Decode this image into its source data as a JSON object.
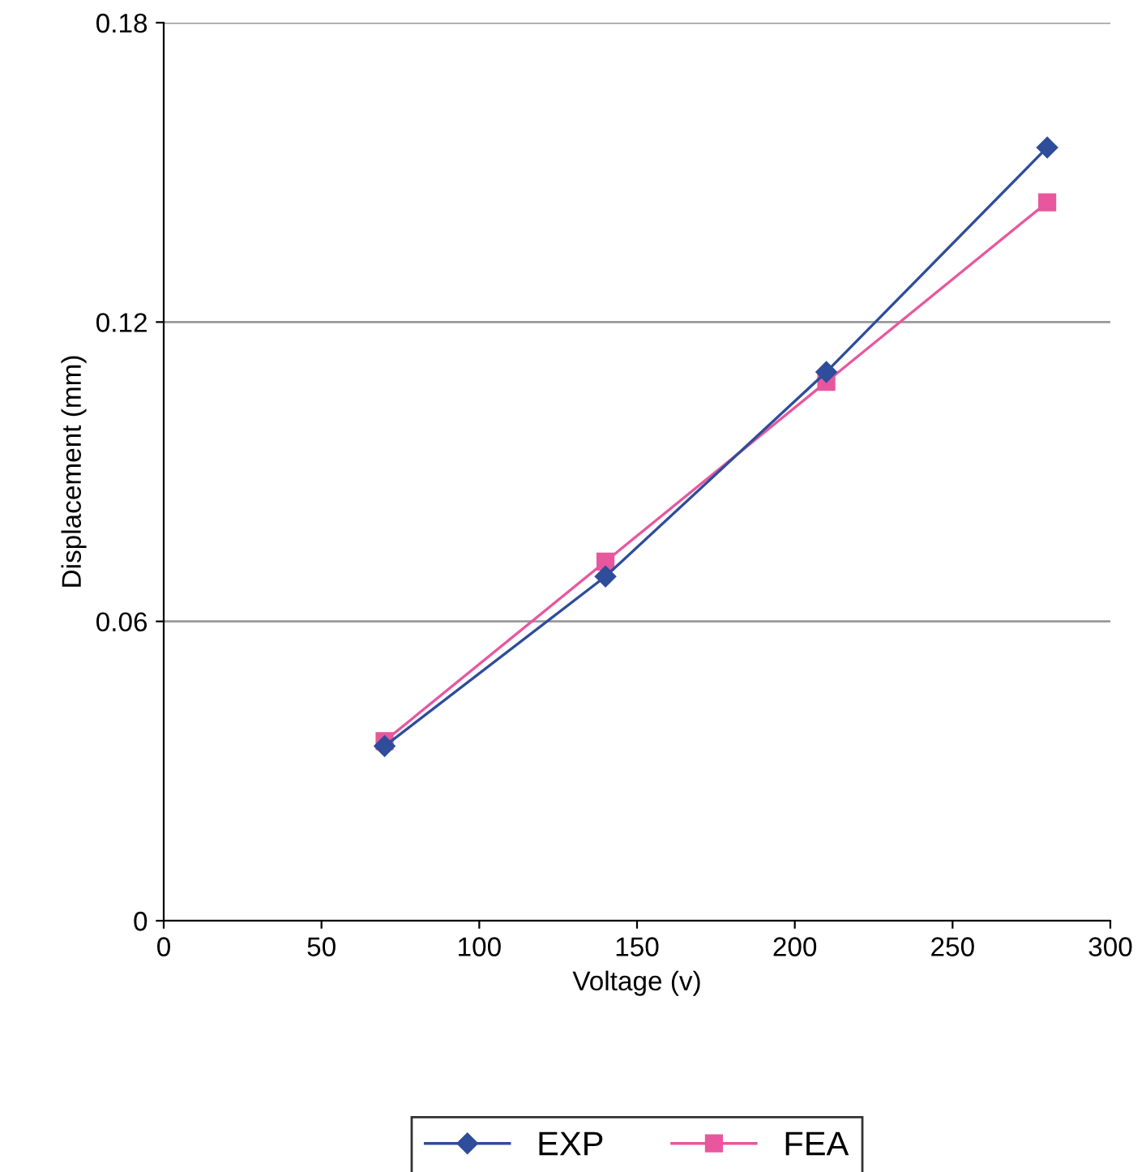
{
  "chart_data": {
    "type": "line",
    "xlabel": "Voltage (v)",
    "ylabel": "Displacement (mm)",
    "x": [
      70,
      140,
      210,
      280
    ],
    "series": [
      {
        "name": "EXP",
        "color": "#2e4d9a",
        "values": [
          0.035,
          0.069,
          0.11,
          0.155
        ],
        "marker": "diamond"
      },
      {
        "name": "FEA",
        "color": "#e8579e",
        "values": [
          0.036,
          0.072,
          0.108,
          0.144
        ],
        "marker": "square"
      }
    ],
    "xlim": [
      0,
      300
    ],
    "xticks": [
      0,
      50,
      100,
      150,
      200,
      250,
      300
    ],
    "ylim": [
      0,
      0.18
    ],
    "yticks": [
      {
        "value": 0,
        "label": "0"
      },
      {
        "value": 0.06,
        "label": "0.06"
      },
      {
        "value": 0.12,
        "label": "0.12"
      },
      {
        "value": 0.18,
        "label": "0.18"
      }
    ],
    "grid": "y",
    "legend": "bottom"
  }
}
